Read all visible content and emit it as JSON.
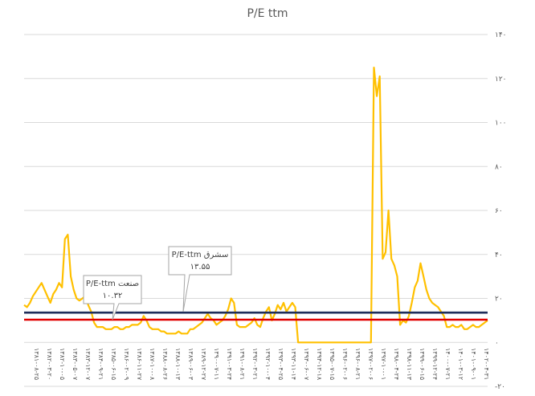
{
  "chart_data": {
    "type": "line",
    "title": "P/E ttm",
    "xlabel": "",
    "ylabel": "",
    "ylim": [
      -20,
      140
    ],
    "y_ticks": [
      "۱۴۰",
      "۱۲۰",
      "۱۰۰",
      "۸۰",
      "۶۰",
      "۴۰",
      "۲۰",
      "۰",
      "-۲۰"
    ],
    "y_tick_values": [
      140,
      120,
      100,
      80,
      60,
      40,
      20,
      0,
      -20
    ],
    "y_axis_position": "right",
    "grid": true,
    "legend": "none",
    "x_labels": [
      "۱۳۸۱-۰۸-۲۵",
      "۱۳۸۲-۰۳-۲۰",
      "۱۳۸۲-۱۰-۰۵",
      "۱۳۸۳-۰۵-۰۷",
      "۱۳۸۳-۱۲-۰۷",
      "۱۳۸۴-۰۹-۲۱",
      "۱۳۸۵-۰۶-۱۵",
      "۱۳۸۶-۰۲-۰۹",
      "۱۳۸۶-۱۱-۲۷",
      "۱۳۸۷-۱۰-۰۸",
      "۱۳۸۸-۰۸-۲۶",
      "۱۳۸۸-۱۰-۱۳",
      "۱۳۸۹-۰۶-۰۳",
      "۱۳۸۹-۱۲-۲۷",
      "۱۳۹۰-۰۷-۱۱",
      "۱۳۹۱-۰۳-۲۴",
      "۱۳۹۱-۰۸-۲۱",
      "۱۳۹۲-۰۳-۲۱",
      "۱۳۹۲-۱۰-۰۴",
      "۱۳۹۳-۰۴-۲۵",
      "۱۳۹۳-۱۱-۱۴",
      "۱۳۹۴-۰۶-۰۷",
      "۱۳۹۴-۱۲-۱۸",
      "۱۳۹۵-۰۷-۱۵",
      "۱۳۹۶-۰۲-۰۶",
      "۱۳۹۶-۰۸-۲۱",
      "۱۳۹۷-۰۲-۰۶",
      "۱۳۹۷-۱۰-۰۱",
      "۱۳۹۸-۰۴-۲۴",
      "۱۳۹۸-۱۱-۱۳",
      "۱۳۹۹-۰۶-۱۵",
      "۱۳۹۹-۱۲-۲۴",
      "۱۴۰۰-۰۷-۲۱",
      "۱۴۰۱-۰۳-۱۲",
      "۱۴۰۱-۰۹-۰۱",
      "۱۴۰۲-۰۴-۳۱"
    ],
    "series": [
      {
        "kind": "pe_ttm",
        "color": "#FFC000",
        "values": [
          17,
          16,
          18,
          21,
          23,
          25,
          27,
          24,
          21,
          18,
          22,
          24,
          27,
          25,
          47,
          49,
          30,
          24,
          20,
          19,
          20,
          21,
          17,
          14,
          9,
          7,
          7,
          7,
          6,
          6,
          6,
          7,
          7,
          6,
          6,
          7,
          7,
          8,
          8,
          8,
          9,
          12,
          10,
          7,
          6,
          6,
          6,
          5,
          5,
          4,
          4,
          4,
          4,
          5,
          4,
          4,
          4,
          6,
          6,
          7,
          8,
          9,
          11,
          13,
          11,
          10,
          8,
          9,
          10,
          12,
          15,
          20,
          18,
          8,
          7,
          7,
          7,
          8,
          9,
          11,
          8,
          7,
          11,
          14,
          16,
          10,
          13,
          17,
          15,
          18,
          14,
          16,
          18,
          16,
          0,
          0,
          0,
          0,
          0,
          0,
          0,
          0,
          0,
          0,
          0,
          0,
          0,
          0,
          0,
          0,
          0,
          0,
          0,
          0,
          0,
          0,
          0,
          0,
          0,
          0,
          125,
          112,
          121,
          38,
          41,
          60,
          38,
          35,
          30,
          8,
          10,
          9,
          12,
          18,
          25,
          28,
          36,
          30,
          24,
          20,
          18,
          17,
          16,
          14,
          12,
          7,
          7,
          8,
          7,
          7,
          8,
          6,
          6,
          7,
          8,
          7,
          7,
          8,
          9,
          10
        ]
      },
      {
        "kind": "reference",
        "name": "سشرق",
        "color": "#1F2D5A",
        "value": 13.55,
        "callout": [
          "P/E-ttm سشرق",
          "۱۳.۵۵"
        ]
      },
      {
        "kind": "reference",
        "name": "صنعت",
        "color": "#E00000",
        "value": 10.32,
        "callout": [
          "P/E-ttm صنعت",
          "۱۰.۳۲"
        ]
      }
    ]
  }
}
